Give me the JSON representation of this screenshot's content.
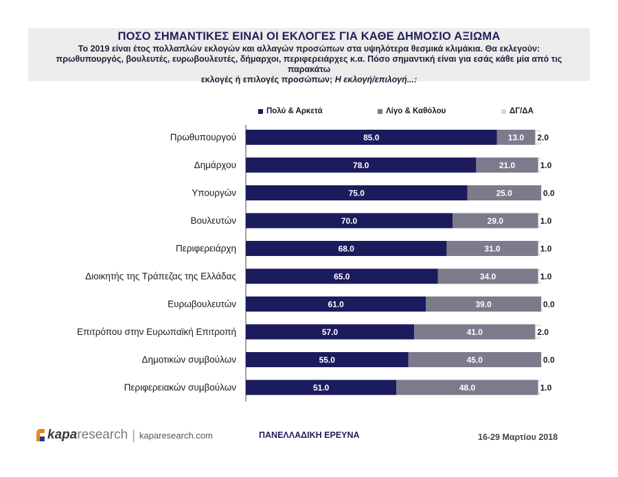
{
  "header": {
    "title": "ΠΟΣΟ ΣΗΜΑΝΤΙΚΕΣ ΕΙΝΑΙ ΟΙ ΕΚΛΟΓΕΣ ΓΙΑ ΚΑΘΕ ΔΗΜΟΣΙΟ ΑΞΙΩΜΑ",
    "subtitle_line1": "Το 2019 είναι έτος πολλαπλών εκλογών και αλλαγών προσώπων στα υψηλότερα θεσμικά κλιμάκια. Θα εκλεγούν:",
    "subtitle_line2": "πρωθυπουργός, βουλευτές, ευρωβουλευτές, δήμαρχοι, περιφερειάρχες κ.α. Πόσο σημαντική είναι για εσάς κάθε μία από τις παρακάτω",
    "subtitle_line3a": "εκλογές ή επιλογές προσώπων;",
    "subtitle_line3b": "Η εκλογή/επιλογή...:"
  },
  "chart_data": {
    "type": "bar",
    "orientation": "horizontal",
    "stacked": true,
    "categories": [
      "Πρωθυπουργού",
      "Δημάρχου",
      "Υπουργών",
      "Βουλευτών",
      "Περιφερειάρχη",
      "Διοικητής της Τράπεζας της Ελλάδας",
      "Ευρωβουλευτών",
      "Επιτρόπου στην Ευρωπαϊκή Επιτροπή",
      "Δημοτικών συμβούλων",
      "Περιφερειακών συμβούλων"
    ],
    "series": [
      {
        "name": "Πολύ & Αρκετά",
        "color": "#1b1b5e",
        "values": [
          85.0,
          78.0,
          75.0,
          70.0,
          68.0,
          65.0,
          61.0,
          57.0,
          55.0,
          51.0
        ]
      },
      {
        "name": "Λίγο & Καθόλου",
        "color": "#7b7b8c",
        "values": [
          13.0,
          21.0,
          25.0,
          29.0,
          31.0,
          34.0,
          39.0,
          41.0,
          45.0,
          48.0
        ]
      },
      {
        "name": "ΔΓ/ΔΑ",
        "color": "#e8e8e8",
        "values": [
          2.0,
          1.0,
          0.0,
          1.0,
          1.0,
          1.0,
          0.0,
          2.0,
          0.0,
          1.0
        ]
      }
    ],
    "legend_position": "top",
    "grid": false,
    "xlim": [
      0,
      100
    ]
  },
  "footer": {
    "logo_kapa": "kapa",
    "logo_research": "research",
    "logo_separator": "|",
    "website": "kaparesearch.com",
    "survey_label": "ΠΑΝΕΛΛΑΔΙΚΗ ΕΡΕΥΝΑ",
    "date_range": "16-29 Μαρτίου 2018"
  }
}
